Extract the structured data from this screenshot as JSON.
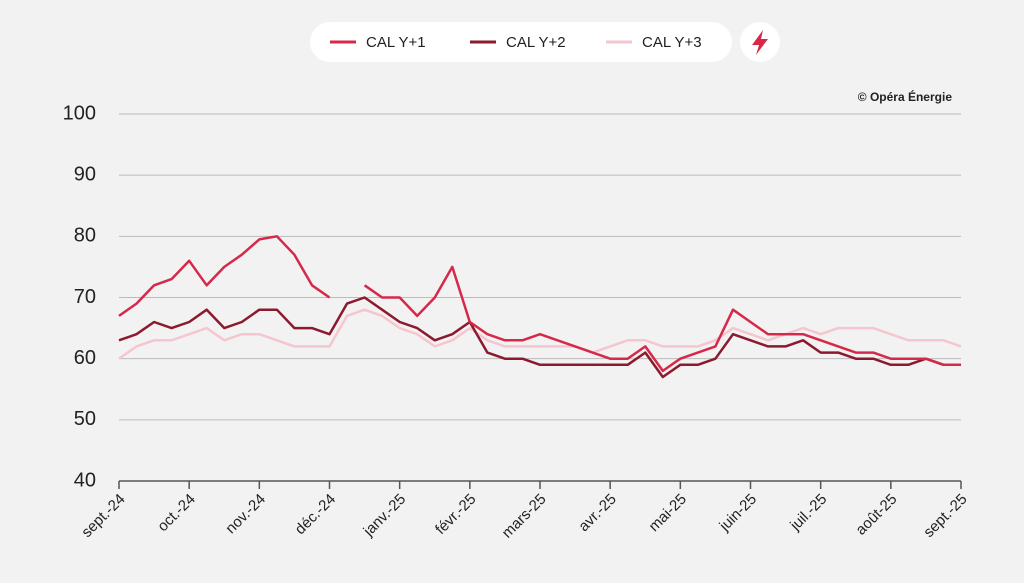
{
  "chart_data": {
    "type": "line",
    "credit": "© Opéra Énergie",
    "categories": [
      "sept.-24",
      null,
      null,
      null,
      "oct.-24",
      null,
      null,
      null,
      "nov.-24",
      null,
      null,
      null,
      "déc.-24",
      null,
      null,
      null,
      "janv.-25",
      null,
      null,
      null,
      "févr.-25",
      null,
      null,
      null,
      "mars-25",
      null,
      null,
      null,
      "avr.-25",
      null,
      null,
      null,
      "mai-25",
      null,
      null,
      null,
      "juin-25",
      null,
      null,
      null,
      "juil.-25",
      null,
      null,
      null,
      "août-25",
      null,
      null,
      null,
      "sept.-25"
    ],
    "series": [
      {
        "name": "CAL Y+1",
        "color": "#d6294a",
        "values": [
          67,
          69,
          72,
          73,
          76,
          72,
          75,
          77,
          79.5,
          80,
          77,
          72,
          70,
          null,
          72,
          70,
          70,
          67,
          70,
          75,
          66,
          64,
          63,
          63,
          64,
          63,
          62,
          61,
          60,
          60,
          62,
          58,
          60,
          61,
          62,
          68,
          66,
          64,
          64,
          64,
          63,
          62,
          61,
          61,
          60,
          60,
          60,
          59,
          59
        ]
      },
      {
        "name": "CAL Y+2",
        "color": "#8b1a2e",
        "values": [
          63,
          64,
          66,
          65,
          66,
          68,
          65,
          66,
          68,
          68,
          65,
          65,
          64,
          69,
          70,
          68,
          66,
          65,
          63,
          64,
          66,
          61,
          60,
          60,
          59,
          59,
          59,
          59,
          59,
          59,
          61,
          57,
          59,
          59,
          60,
          64,
          63,
          62,
          62,
          63,
          61,
          61,
          60,
          60,
          59,
          59,
          60,
          59,
          59
        ]
      },
      {
        "name": "CAL Y+3",
        "color": "#f5c6cf",
        "values": [
          60,
          62,
          63,
          63,
          64,
          65,
          63,
          64,
          64,
          63,
          62,
          62,
          62,
          67,
          68,
          67,
          65,
          64,
          62,
          63,
          65,
          63,
          62,
          62,
          62,
          62,
          62,
          61,
          62,
          63,
          63,
          62,
          62,
          62,
          63,
          65,
          64,
          63,
          64,
          65,
          64,
          65,
          65,
          65,
          64,
          63,
          63,
          63,
          62
        ]
      }
    ],
    "ylim": [
      40,
      100
    ],
    "yticks": [
      40,
      50,
      60,
      70,
      80,
      90,
      100
    ],
    "grid": true
  }
}
